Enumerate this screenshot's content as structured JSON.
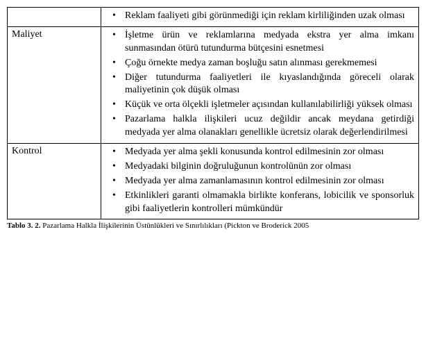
{
  "table": {
    "rows": [
      {
        "label": "",
        "bullets": [
          "Reklam faaliyeti gibi görünmediği için reklam kirliliğinden uzak olması"
        ]
      },
      {
        "label": "Maliyet",
        "bullets": [
          "İşletme ürün ve reklamlarına medyada ekstra yer alma imkanı sunmasından ötürü tutundurma bütçesini esnetmesi",
          "Çoğu örnekte medya zaman boşluğu satın alınması gerekmemesi",
          "Diğer tutundurma faaliyetleri ile kıyaslandığında göreceli olarak maliyetinin çok düşük olması",
          "Küçük ve orta ölçekli işletmeler açısından kullanılabilirliği yüksek olması",
          "Pazarlama halkla ilişkileri ucuz değildir ancak meydana getirdiği medyada yer alma olanakları genellikle ücretsiz olarak değerlendirilmesi"
        ]
      },
      {
        "label": "Kontrol",
        "bullets": [
          "Medyada yer alma şekli konusunda kontrol edilmesinin zor olması",
          "Medyadaki bilginin doğruluğunun kontrolünün zor olması",
          "Medyada yer alma zamanlamasının kontrol edilmesinin zor olması",
          "Etkinlikleri garanti olmamakla birlikte konferans, lobicilik ve sponsorluk gibi faaliyetlerin kontrolleri mümkündür"
        ]
      }
    ]
  },
  "caption_label": "Tablo 3. 2.",
  "caption_text": "Pazarlama Halkla İlişkilerinin Üstünlükleri ve Sınırlılıkları (Pickton ve Broderick 2005"
}
